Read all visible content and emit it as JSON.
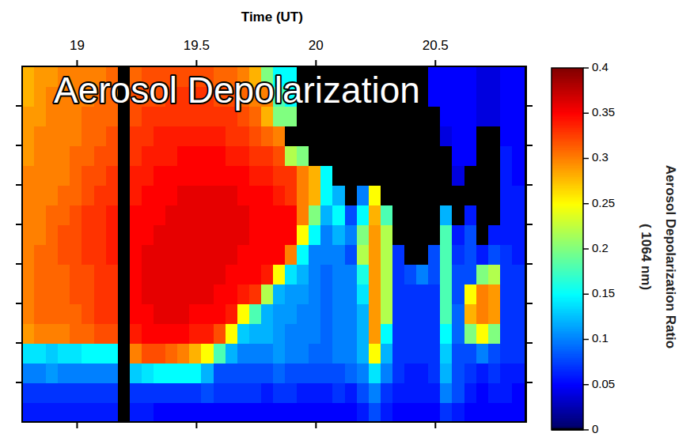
{
  "chart_data": {
    "type": "heatmap",
    "title": "Aerosol Depolarization",
    "x_label": "Time (UT)",
    "xlim": [
      18.77,
      20.88
    ],
    "xticks": [
      19,
      19.5,
      20,
      20.5
    ],
    "ylim": [
      0,
      9
    ],
    "yticks": [
      1,
      2,
      3,
      4,
      5,
      6,
      7,
      8
    ],
    "tick_labels": "x",
    "x": [
      18.795,
      18.845,
      18.895,
      18.945,
      18.995,
      19.045,
      19.095,
      19.145,
      19.195,
      19.245,
      19.295,
      19.345,
      19.395,
      19.445,
      19.495,
      19.545,
      19.595,
      19.645,
      19.695,
      19.745,
      19.795,
      19.845,
      19.895,
      19.945,
      19.995,
      20.045,
      20.095,
      20.145,
      20.195,
      20.245,
      20.295,
      20.345,
      20.395,
      20.445,
      20.495,
      20.545,
      20.595,
      20.645,
      20.695,
      20.745,
      20.795,
      20.845
    ],
    "y": [
      0.25,
      0.75,
      1.25,
      1.75,
      2.25,
      2.75,
      3.25,
      3.75,
      4.25,
      4.75,
      5.25,
      5.75,
      6.25,
      6.75,
      7.25,
      7.75,
      8.25,
      8.75
    ],
    "cells": [
      [
        0.06,
        0.06,
        0.06,
        0.06,
        0.06,
        0.06,
        0.06,
        0.06,
        0,
        0.06,
        0.06,
        0.05,
        0.05,
        0.05,
        0.05,
        0.05,
        0.05,
        0.05,
        0.05,
        0.05,
        0.05,
        0.05,
        0.05,
        0.05,
        0.05,
        0.05,
        0.05,
        0.05,
        0.06,
        0.08,
        0.06,
        0.05,
        0.05,
        0.05,
        0.05,
        0.07,
        0.06,
        0.05,
        0.05,
        0.05,
        0.05,
        0.05
      ],
      [
        0.07,
        0.07,
        0.07,
        0.07,
        0.07,
        0.07,
        0.07,
        0.07,
        0,
        0.07,
        0.07,
        0.07,
        0.07,
        0.07,
        0.07,
        0.08,
        0.07,
        0.07,
        0.07,
        0.07,
        0.06,
        0.07,
        0.07,
        0.06,
        0.06,
        0.06,
        0.07,
        0.06,
        0.08,
        0.1,
        0.07,
        0.06,
        0.06,
        0.06,
        0.06,
        0.1,
        0.08,
        0.06,
        0.05,
        0.06,
        0.06,
        0.05
      ],
      [
        0.1,
        0.1,
        0.11,
        0.1,
        0.1,
        0.1,
        0.1,
        0.1,
        0,
        0.13,
        0.14,
        0.15,
        0.15,
        0.15,
        0.15,
        0.12,
        0.08,
        0.08,
        0.08,
        0.08,
        0.08,
        0.09,
        0.08,
        0.08,
        0.08,
        0.08,
        0.08,
        0.09,
        0.1,
        0.14,
        0.1,
        0.07,
        0.06,
        0.06,
        0.07,
        0.12,
        0.08,
        0.07,
        0.06,
        0.07,
        0.06,
        0.06
      ],
      [
        0.14,
        0.14,
        0.13,
        0.14,
        0.14,
        0.15,
        0.15,
        0.15,
        0,
        0.3,
        0.32,
        0.32,
        0.31,
        0.3,
        0.28,
        0.25,
        0.18,
        0.12,
        0.1,
        0.1,
        0.1,
        0.11,
        0.1,
        0.1,
        0.09,
        0.09,
        0.1,
        0.1,
        0.12,
        0.25,
        0.12,
        0.07,
        0.07,
        0.07,
        0.07,
        0.13,
        0.08,
        0.08,
        0.1,
        0.08,
        0.07,
        0.07
      ],
      [
        0.29,
        0.3,
        0.3,
        0.3,
        0.31,
        0.31,
        0.32,
        0.32,
        0,
        0.34,
        0.35,
        0.35,
        0.35,
        0.35,
        0.34,
        0.34,
        0.32,
        0.25,
        0.13,
        0.12,
        0.12,
        0.11,
        0.1,
        0.1,
        0.1,
        0.09,
        0.1,
        0.1,
        0.12,
        0.29,
        0.15,
        0.07,
        0.07,
        0.07,
        0.07,
        0.15,
        0.09,
        0.2,
        0.25,
        0.2,
        0.07,
        0.07
      ],
      [
        0.3,
        0.31,
        0.31,
        0.31,
        0.31,
        0.32,
        0.33,
        0.33,
        0,
        0.35,
        0.35,
        0.36,
        0.36,
        0.36,
        0.35,
        0.35,
        0.35,
        0.34,
        0.25,
        0.18,
        0.12,
        0.11,
        0.11,
        0.1,
        0.1,
        0.09,
        0.1,
        0.1,
        0.12,
        0.29,
        0.22,
        0.07,
        0.07,
        0.07,
        0.07,
        0.18,
        0.09,
        0.28,
        0.3,
        0.29,
        0.07,
        0.07
      ],
      [
        0.3,
        0.31,
        0.31,
        0.31,
        0.32,
        0.32,
        0.33,
        0.33,
        0,
        0.35,
        0.36,
        0.36,
        0.36,
        0.36,
        0.36,
        0.36,
        0.35,
        0.35,
        0.34,
        0.33,
        0.22,
        0.12,
        0.11,
        0.11,
        0.1,
        0.09,
        0.1,
        0.1,
        0.14,
        0.29,
        0.22,
        0.07,
        0.07,
        0.07,
        0.07,
        0.18,
        0.08,
        0.25,
        0.3,
        0.29,
        0.07,
        0.07
      ],
      [
        0.3,
        0.31,
        0.31,
        0.31,
        0.32,
        0.32,
        0.33,
        0.33,
        0,
        0.35,
        0.36,
        0.36,
        0.36,
        0.36,
        0.36,
        0.36,
        0.36,
        0.35,
        0.35,
        0.35,
        0.34,
        0.25,
        0.14,
        0.12,
        0.1,
        0.09,
        0.1,
        0.1,
        0.16,
        0.29,
        0.22,
        0.07,
        0.08,
        0.1,
        0.08,
        0.18,
        0.08,
        0.08,
        0.2,
        0.22,
        0.07,
        0.07
      ],
      [
        0.3,
        0.31,
        0.31,
        0.32,
        0.32,
        0.33,
        0.33,
        0.34,
        0,
        0.35,
        0.36,
        0.36,
        0.36,
        0.36,
        0.36,
        0.36,
        0.36,
        0.36,
        0.35,
        0.35,
        0.35,
        0.35,
        0.3,
        0.15,
        0.1,
        0.1,
        0.1,
        0.08,
        0.22,
        0.29,
        0.22,
        0.07,
        0,
        0,
        0.08,
        0.18,
        0.07,
        0.08,
        0.06,
        0.08,
        0.07,
        0.06
      ],
      [
        0.3,
        0.3,
        0.31,
        0.32,
        0.32,
        0.33,
        0.33,
        0.34,
        0,
        0.35,
        0.35,
        0.36,
        0.36,
        0.36,
        0.36,
        0.36,
        0.36,
        0.36,
        0.36,
        0.35,
        0.35,
        0.35,
        0.35,
        0.25,
        0.15,
        0.1,
        0.12,
        0.1,
        0.2,
        0.29,
        0.22,
        0,
        0,
        0,
        0,
        0.18,
        0.06,
        0.08,
        0,
        0.06,
        0.06,
        0.06
      ],
      [
        0.3,
        0.3,
        0.31,
        0.31,
        0.32,
        0.33,
        0.33,
        0.34,
        0,
        0.35,
        0.35,
        0.35,
        0.36,
        0.36,
        0.36,
        0.36,
        0.36,
        0.36,
        0.36,
        0.35,
        0.35,
        0.35,
        0.35,
        0.3,
        0.2,
        0.12,
        0.15,
        0.08,
        0.15,
        0.28,
        0.18,
        0,
        0,
        0,
        0,
        0.12,
        0,
        0.06,
        0,
        0,
        0.06,
        0.06
      ],
      [
        0.3,
        0.3,
        0.3,
        0.31,
        0.31,
        0.32,
        0.33,
        0.33,
        0,
        0.34,
        0.35,
        0.35,
        0.35,
        0.36,
        0.36,
        0.36,
        0.36,
        0.36,
        0.35,
        0.35,
        0.35,
        0.34,
        0.33,
        0.3,
        0.28,
        0.15,
        0.12,
        0,
        0.1,
        0.25,
        0,
        0,
        0,
        0,
        0,
        0,
        0,
        0,
        0,
        0,
        0.06,
        0.06
      ],
      [
        0.3,
        0.3,
        0.3,
        0.3,
        0.31,
        0.32,
        0.32,
        0.33,
        0,
        0.34,
        0.34,
        0.35,
        0.35,
        0.35,
        0.35,
        0.35,
        0.35,
        0.35,
        0.35,
        0.34,
        0.34,
        0.33,
        0.33,
        0.3,
        0.28,
        0.15,
        0,
        0,
        0,
        0,
        0,
        0,
        0,
        0,
        0,
        0,
        0.04,
        0,
        0,
        0,
        0.06,
        0.05
      ],
      [
        0.29,
        0.3,
        0.3,
        0.3,
        0.31,
        0.31,
        0.32,
        0.32,
        0,
        0.33,
        0.34,
        0.34,
        0.34,
        0.35,
        0.35,
        0.35,
        0.35,
        0.34,
        0.34,
        0.33,
        0.33,
        0.32,
        0.22,
        0.2,
        0,
        0,
        0,
        0,
        0,
        0,
        0,
        0,
        0,
        0,
        0,
        0,
        0.05,
        0.05,
        0,
        0,
        0.06,
        0.05
      ],
      [
        0.29,
        0.3,
        0.3,
        0.3,
        0.3,
        0.31,
        0.31,
        0.32,
        0,
        0.33,
        0.33,
        0.34,
        0.34,
        0.34,
        0.34,
        0.34,
        0.34,
        0.33,
        0.33,
        0.32,
        0.31,
        0.3,
        0,
        0,
        0,
        0,
        0,
        0,
        0,
        0,
        0,
        0,
        0,
        0,
        0,
        0.04,
        0.05,
        0.05,
        0,
        0,
        0.05,
        0.05
      ],
      [
        0.29,
        0.29,
        0.3,
        0.3,
        0.3,
        0.31,
        0.31,
        0.31,
        0,
        0.32,
        0.33,
        0.33,
        0.33,
        0.33,
        0.33,
        0.33,
        0.33,
        0.33,
        0.32,
        0.31,
        0.28,
        0.2,
        0.2,
        0,
        0,
        0,
        0,
        0,
        0,
        0,
        0,
        0,
        0,
        0,
        0,
        0.05,
        0.05,
        0.05,
        0.04,
        0.04,
        0.05,
        0.05
      ],
      [
        0.28,
        0.29,
        0.3,
        0.3,
        0.3,
        0.3,
        0.31,
        0.31,
        0,
        0.32,
        0.32,
        0.32,
        0.33,
        0.33,
        0.33,
        0.33,
        0.32,
        0.32,
        0.31,
        0.3,
        0.3,
        0.18,
        0.15,
        0,
        0,
        0,
        0,
        0,
        0,
        0,
        0,
        0,
        0,
        0,
        0.05,
        0.05,
        0.05,
        0.05,
        0.04,
        0.04,
        0.05,
        0.05
      ],
      [
        0.28,
        0.29,
        0.29,
        0.3,
        0.3,
        0.3,
        0.3,
        0.31,
        0,
        0.31,
        0.32,
        0.32,
        0.32,
        0.32,
        0.32,
        0.32,
        0.31,
        0.31,
        0.3,
        0.28,
        0.2,
        0.15,
        0.15,
        0,
        0,
        0,
        0,
        0,
        0,
        0,
        0,
        0,
        0,
        0,
        0.05,
        0.05,
        0.05,
        0.05,
        0.04,
        0.04,
        0.05,
        0.05
      ]
    ],
    "colorbar": {
      "label": [
        "Aerosol Depolarization Ratio",
        "( 1064 nm)"
      ],
      "range": [
        0,
        0.4
      ],
      "ticks": [
        0,
        0.05,
        0.1,
        0.15,
        0.2,
        0.25,
        0.3,
        0.35,
        0.4
      ]
    }
  }
}
